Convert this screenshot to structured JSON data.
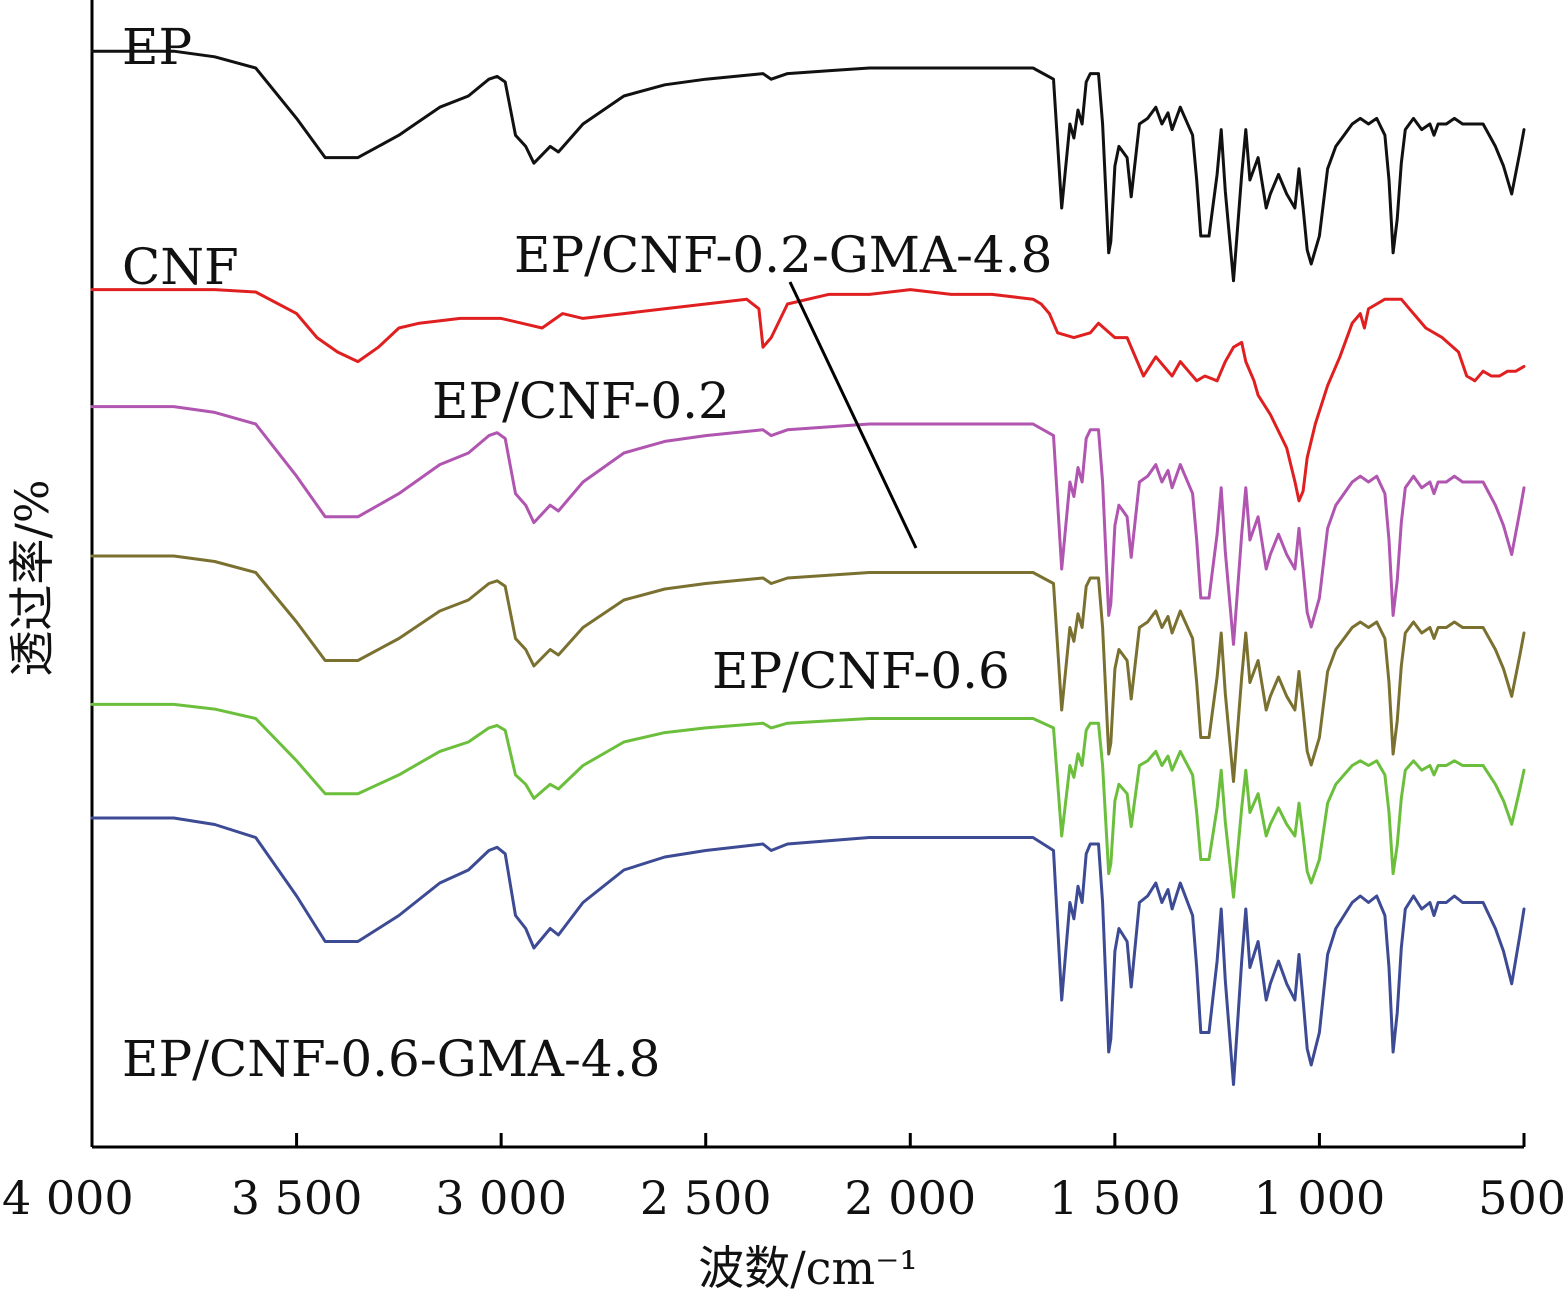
{
  "chart_data": {
    "type": "line",
    "title": "",
    "xlabel": "波数/cm⁻¹",
    "ylabel": "透过率/%",
    "xlim": [
      4000,
      500
    ],
    "x_reversed": true,
    "grid": false,
    "xticks": [
      4000,
      3500,
      3000,
      2500,
      2000,
      1500,
      1000,
      500
    ],
    "xtick_labels": [
      "4 000",
      "3 500",
      "3 000",
      "2 500",
      "2 000",
      "1 500",
      "1 000",
      "500"
    ],
    "y_units": "relative transmittance (stacked spectra, offset)",
    "series": [
      {
        "name": "EP",
        "color": "#111111",
        "offset": 0,
        "x": [
          4000,
          3800,
          3700,
          3600,
          3500,
          3430,
          3350,
          3250,
          3150,
          3080,
          3030,
          3010,
          2990,
          2965,
          2940,
          2920,
          2880,
          2860,
          2800,
          2700,
          2600,
          2500,
          2360,
          2340,
          2300,
          2200,
          2100,
          2000,
          1900,
          1800,
          1700,
          1650,
          1630,
          1610,
          1600,
          1590,
          1580,
          1570,
          1560,
          1540,
          1530,
          1515,
          1510,
          1500,
          1490,
          1470,
          1460,
          1440,
          1420,
          1400,
          1385,
          1370,
          1360,
          1340,
          1310,
          1300,
          1290,
          1270,
          1250,
          1240,
          1230,
          1210,
          1190,
          1180,
          1170,
          1150,
          1130,
          1120,
          1100,
          1080,
          1060,
          1050,
          1040,
          1030,
          1020,
          1000,
          980,
          960,
          940,
          920,
          900,
          880,
          860,
          840,
          830,
          820,
          810,
          800,
          790,
          770,
          750,
          730,
          720,
          710,
          690,
          670,
          650,
          620,
          600,
          570,
          550,
          530,
          510,
          500
        ],
        "y": [
          96,
          96,
          94,
          90,
          72,
          58,
          58,
          66,
          76,
          80,
          86,
          87,
          85,
          66,
          62,
          56,
          62,
          60,
          70,
          80,
          84,
          86,
          88,
          86,
          88,
          89,
          90,
          90,
          90,
          90,
          90,
          86,
          40,
          70,
          65,
          75,
          70,
          85,
          88,
          88,
          70,
          24,
          28,
          55,
          62,
          58,
          44,
          70,
          72,
          76,
          70,
          74,
          68,
          76,
          66,
          50,
          30,
          30,
          52,
          68,
          46,
          14,
          52,
          68,
          50,
          58,
          40,
          45,
          52,
          45,
          40,
          54,
          40,
          25,
          20,
          30,
          54,
          62,
          66,
          70,
          72,
          70,
          72,
          66,
          50,
          24,
          36,
          56,
          68,
          72,
          68,
          70,
          66,
          70,
          70,
          72,
          70,
          70,
          70,
          62,
          55,
          45,
          60,
          68
        ]
      },
      {
        "name": "CNF",
        "color": "#e02020",
        "offset": 0,
        "x": [
          4000,
          3800,
          3700,
          3600,
          3500,
          3450,
          3400,
          3350,
          3300,
          3250,
          3200,
          3100,
          3000,
          2950,
          2900,
          2850,
          2800,
          2700,
          2600,
          2500,
          2400,
          2370,
          2360,
          2340,
          2300,
          2200,
          2100,
          2000,
          1900,
          1800,
          1700,
          1680,
          1660,
          1640,
          1600,
          1560,
          1540,
          1500,
          1470,
          1430,
          1400,
          1360,
          1340,
          1320,
          1300,
          1280,
          1250,
          1230,
          1210,
          1190,
          1180,
          1160,
          1150,
          1120,
          1080,
          1060,
          1050,
          1040,
          1030,
          1010,
          980,
          950,
          920,
          900,
          890,
          880,
          860,
          840,
          830,
          800,
          780,
          760,
          740,
          700,
          660,
          640,
          620,
          600,
          580,
          560,
          540,
          520,
          500
        ],
        "y": [
          96,
          96,
          96,
          95,
          86,
          76,
          70,
          66,
          72,
          80,
          82,
          84,
          84,
          82,
          80,
          86,
          84,
          86,
          88,
          90,
          92,
          88,
          72,
          76,
          90,
          94,
          94,
          96,
          94,
          94,
          92,
          90,
          86,
          78,
          76,
          78,
          82,
          76,
          76,
          60,
          68,
          60,
          66,
          62,
          58,
          60,
          58,
          66,
          72,
          74,
          66,
          58,
          52,
          44,
          30,
          16,
          8,
          12,
          26,
          40,
          56,
          68,
          82,
          86,
          80,
          88,
          90,
          92,
          92,
          92,
          88,
          84,
          80,
          76,
          70,
          60,
          58,
          62,
          60,
          60,
          62,
          62,
          64
        ]
      },
      {
        "name": "EP/CNF-0.2",
        "color": "#b055b0",
        "offset": 0,
        "x": [
          4000,
          3800,
          3700,
          3600,
          3500,
          3430,
          3350,
          3250,
          3150,
          3080,
          3030,
          3010,
          2990,
          2965,
          2940,
          2920,
          2880,
          2860,
          2800,
          2700,
          2600,
          2500,
          2360,
          2340,
          2300,
          2200,
          2100,
          2000,
          1900,
          1800,
          1700,
          1650,
          1630,
          1610,
          1600,
          1590,
          1580,
          1570,
          1560,
          1540,
          1530,
          1515,
          1510,
          1500,
          1490,
          1470,
          1460,
          1440,
          1420,
          1400,
          1385,
          1370,
          1360,
          1340,
          1310,
          1300,
          1290,
          1270,
          1250,
          1240,
          1230,
          1210,
          1190,
          1180,
          1170,
          1150,
          1130,
          1120,
          1100,
          1080,
          1060,
          1050,
          1040,
          1030,
          1020,
          1000,
          980,
          960,
          940,
          920,
          900,
          880,
          860,
          840,
          830,
          820,
          810,
          800,
          790,
          770,
          750,
          730,
          720,
          710,
          690,
          670,
          650,
          620,
          600,
          570,
          550,
          530,
          510,
          500
        ],
        "y": [
          96,
          96,
          94,
          90,
          72,
          58,
          58,
          66,
          76,
          80,
          86,
          87,
          85,
          66,
          62,
          56,
          62,
          60,
          70,
          80,
          84,
          86,
          88,
          86,
          88,
          89,
          90,
          90,
          90,
          90,
          90,
          86,
          40,
          70,
          65,
          75,
          70,
          85,
          88,
          88,
          70,
          24,
          28,
          55,
          62,
          58,
          44,
          70,
          72,
          76,
          70,
          74,
          68,
          76,
          66,
          50,
          30,
          30,
          52,
          68,
          46,
          14,
          52,
          68,
          50,
          58,
          40,
          45,
          52,
          45,
          40,
          54,
          40,
          25,
          20,
          30,
          54,
          62,
          66,
          70,
          72,
          70,
          72,
          66,
          50,
          24,
          36,
          56,
          68,
          72,
          68,
          70,
          66,
          70,
          70,
          72,
          70,
          70,
          70,
          62,
          55,
          45,
          60,
          68
        ]
      },
      {
        "name": "EP/CNF-0.2-GMA-4.8",
        "color": "#7a7030",
        "offset": 0,
        "x": [
          4000,
          3800,
          3700,
          3600,
          3500,
          3430,
          3350,
          3250,
          3150,
          3080,
          3030,
          3010,
          2990,
          2965,
          2940,
          2920,
          2880,
          2860,
          2800,
          2700,
          2600,
          2500,
          2360,
          2340,
          2300,
          2200,
          2100,
          2000,
          1900,
          1800,
          1700,
          1650,
          1630,
          1610,
          1600,
          1590,
          1580,
          1570,
          1560,
          1540,
          1530,
          1515,
          1510,
          1500,
          1490,
          1470,
          1460,
          1440,
          1420,
          1400,
          1385,
          1370,
          1360,
          1340,
          1310,
          1300,
          1290,
          1270,
          1250,
          1240,
          1230,
          1210,
          1190,
          1180,
          1170,
          1150,
          1130,
          1120,
          1100,
          1080,
          1060,
          1050,
          1040,
          1030,
          1020,
          1000,
          980,
          960,
          940,
          920,
          900,
          880,
          860,
          840,
          830,
          820,
          810,
          800,
          790,
          770,
          750,
          730,
          720,
          710,
          690,
          670,
          650,
          620,
          600,
          570,
          550,
          530,
          510,
          500
        ],
        "y": [
          96,
          96,
          94,
          90,
          72,
          58,
          58,
          66,
          76,
          80,
          86,
          87,
          85,
          66,
          62,
          56,
          62,
          60,
          70,
          80,
          84,
          86,
          88,
          86,
          88,
          89,
          90,
          90,
          90,
          90,
          90,
          86,
          40,
          70,
          65,
          75,
          70,
          85,
          88,
          88,
          70,
          24,
          28,
          55,
          62,
          58,
          44,
          70,
          72,
          76,
          70,
          74,
          68,
          76,
          66,
          50,
          30,
          30,
          52,
          68,
          46,
          14,
          52,
          68,
          50,
          58,
          40,
          45,
          52,
          45,
          40,
          54,
          40,
          25,
          20,
          30,
          54,
          62,
          66,
          70,
          72,
          70,
          72,
          66,
          50,
          24,
          36,
          56,
          68,
          72,
          68,
          70,
          66,
          70,
          70,
          72,
          70,
          70,
          70,
          62,
          55,
          45,
          60,
          68
        ]
      },
      {
        "name": "EP/CNF-0.6",
        "color": "#6cbf3c",
        "offset": 0,
        "x": [
          4000,
          3800,
          3700,
          3600,
          3500,
          3430,
          3350,
          3250,
          3150,
          3080,
          3030,
          3010,
          2990,
          2965,
          2940,
          2920,
          2880,
          2860,
          2800,
          2700,
          2600,
          2500,
          2360,
          2340,
          2300,
          2200,
          2100,
          2000,
          1900,
          1800,
          1700,
          1650,
          1630,
          1610,
          1600,
          1590,
          1580,
          1570,
          1560,
          1540,
          1530,
          1515,
          1510,
          1500,
          1490,
          1470,
          1460,
          1440,
          1420,
          1400,
          1385,
          1370,
          1360,
          1340,
          1310,
          1300,
          1290,
          1270,
          1250,
          1240,
          1230,
          1210,
          1190,
          1180,
          1170,
          1150,
          1130,
          1120,
          1100,
          1080,
          1060,
          1050,
          1040,
          1030,
          1020,
          1000,
          980,
          960,
          940,
          920,
          900,
          880,
          860,
          840,
          830,
          820,
          810,
          800,
          790,
          770,
          750,
          730,
          720,
          710,
          690,
          670,
          650,
          620,
          600,
          570,
          550,
          530,
          510,
          500
        ],
        "y": [
          96,
          96,
          94,
          90,
          72,
          58,
          58,
          66,
          76,
          80,
          86,
          87,
          85,
          66,
          62,
          56,
          62,
          60,
          70,
          80,
          84,
          86,
          88,
          86,
          88,
          89,
          90,
          90,
          90,
          90,
          90,
          86,
          40,
          70,
          65,
          75,
          70,
          85,
          88,
          88,
          70,
          24,
          28,
          55,
          62,
          58,
          44,
          70,
          72,
          76,
          70,
          74,
          68,
          76,
          66,
          50,
          30,
          30,
          52,
          68,
          46,
          14,
          52,
          68,
          50,
          58,
          40,
          45,
          52,
          45,
          40,
          54,
          40,
          25,
          20,
          30,
          54,
          62,
          66,
          70,
          72,
          70,
          72,
          66,
          50,
          24,
          36,
          56,
          68,
          72,
          68,
          70,
          66,
          70,
          70,
          72,
          70,
          70,
          70,
          62,
          55,
          45,
          60,
          68
        ]
      },
      {
        "name": "EP/CNF-0.6-GMA-4.8",
        "color": "#3d4a94",
        "offset": 0,
        "x": [
          4000,
          3800,
          3700,
          3600,
          3500,
          3430,
          3350,
          3250,
          3150,
          3080,
          3030,
          3010,
          2990,
          2965,
          2940,
          2920,
          2880,
          2860,
          2800,
          2700,
          2600,
          2500,
          2360,
          2340,
          2300,
          2200,
          2100,
          2000,
          1900,
          1800,
          1700,
          1650,
          1630,
          1610,
          1600,
          1590,
          1580,
          1570,
          1560,
          1540,
          1530,
          1515,
          1510,
          1500,
          1490,
          1470,
          1460,
          1440,
          1420,
          1400,
          1385,
          1370,
          1360,
          1340,
          1310,
          1300,
          1290,
          1270,
          1250,
          1240,
          1230,
          1210,
          1190,
          1180,
          1170,
          1150,
          1130,
          1120,
          1100,
          1080,
          1060,
          1050,
          1040,
          1030,
          1020,
          1000,
          980,
          960,
          940,
          920,
          900,
          880,
          860,
          840,
          830,
          820,
          810,
          800,
          790,
          770,
          750,
          730,
          720,
          710,
          690,
          670,
          650,
          620,
          600,
          570,
          550,
          530,
          510,
          500
        ],
        "y": [
          96,
          96,
          94,
          90,
          72,
          58,
          58,
          66,
          76,
          80,
          86,
          87,
          85,
          66,
          62,
          56,
          62,
          60,
          70,
          80,
          84,
          86,
          88,
          86,
          88,
          89,
          90,
          90,
          90,
          90,
          90,
          86,
          40,
          70,
          65,
          75,
          70,
          85,
          88,
          88,
          70,
          24,
          28,
          55,
          62,
          58,
          44,
          70,
          72,
          76,
          70,
          74,
          68,
          76,
          66,
          50,
          30,
          30,
          52,
          68,
          46,
          14,
          52,
          68,
          50,
          58,
          40,
          45,
          52,
          45,
          40,
          54,
          40,
          25,
          20,
          30,
          54,
          62,
          66,
          70,
          72,
          70,
          72,
          66,
          50,
          24,
          36,
          56,
          68,
          72,
          68,
          70,
          66,
          70,
          70,
          72,
          70,
          70,
          70,
          62,
          55,
          45,
          60,
          68
        ]
      }
    ]
  }
}
